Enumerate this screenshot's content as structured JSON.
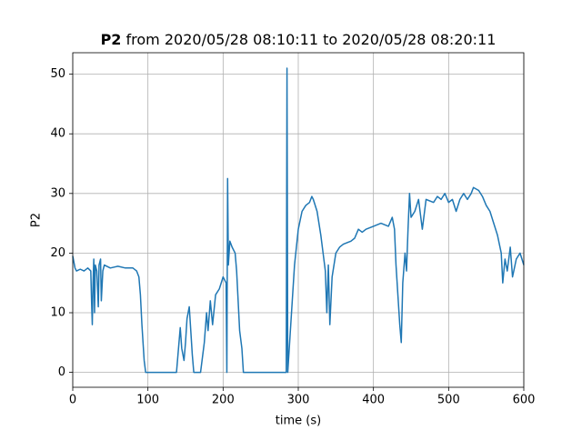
{
  "chart_data": {
    "type": "line",
    "title": [
      "P2",
      "from 2020/05/28 08:10:11 to 2020/05/28 08:20:11"
    ],
    "x_label": "time (s)",
    "y_label": "P2",
    "x": [
      0,
      3,
      5,
      10,
      15,
      20,
      24,
      25,
      26,
      27,
      28,
      29,
      30,
      32,
      34,
      35,
      37,
      38,
      40,
      42,
      50,
      60,
      70,
      80,
      85,
      88,
      90,
      92,
      95,
      97,
      100,
      138,
      140,
      143,
      145,
      148,
      150,
      152,
      155,
      157,
      159,
      161,
      163,
      170,
      175,
      178,
      180,
      183,
      186,
      190,
      195,
      200,
      204,
      205,
      206,
      207,
      209,
      212,
      216,
      218,
      220,
      222,
      225,
      227,
      230,
      284,
      285,
      286,
      287,
      289,
      292,
      295,
      300,
      305,
      310,
      315,
      318,
      320,
      325,
      330,
      333,
      336,
      338,
      340,
      342,
      345,
      350,
      355,
      360,
      370,
      375,
      380,
      385,
      390,
      400,
      410,
      420,
      425,
      428,
      430,
      433,
      435,
      437,
      439,
      442,
      444,
      446,
      448,
      450,
      455,
      460,
      465,
      470,
      480,
      485,
      490,
      495,
      500,
      505,
      510,
      515,
      520,
      525,
      530,
      533,
      540,
      545,
      550,
      555,
      560,
      565,
      570,
      572,
      575,
      578,
      582,
      585,
      590,
      595,
      600
    ],
    "series": [
      {
        "name": "P2",
        "color": "#1f77b4",
        "values": [
          19.5,
          17.5,
          17,
          17.3,
          17,
          17.5,
          17,
          12,
          8,
          15,
          19,
          10,
          18,
          17,
          11,
          18,
          19,
          12,
          17,
          18,
          17.5,
          17.8,
          17.5,
          17.5,
          17,
          16,
          13,
          8,
          2,
          0,
          0,
          0,
          3,
          7.5,
          4,
          2,
          5,
          9,
          11,
          7,
          3,
          0,
          0,
          0,
          5,
          10,
          7,
          12,
          8,
          13,
          14,
          16,
          15,
          0,
          32.5,
          18,
          22,
          21,
          20,
          17,
          12,
          7,
          4,
          0,
          0,
          0,
          51,
          0,
          2,
          6,
          12,
          18,
          24,
          27,
          28,
          28.5,
          29.5,
          29,
          27,
          23,
          20,
          17,
          10,
          18,
          8,
          16,
          20,
          21,
          21.5,
          22,
          22.5,
          24,
          23.5,
          24,
          24.5,
          25,
          24.5,
          26,
          24,
          18,
          12,
          8,
          5,
          15,
          20,
          17,
          24,
          30,
          26,
          27,
          29,
          24,
          29,
          28.5,
          29.5,
          29,
          30,
          28.5,
          29,
          27,
          29,
          30,
          29,
          30,
          31,
          30.5,
          29.5,
          28,
          27,
          25,
          23,
          20,
          15,
          19,
          17,
          21,
          16,
          19,
          20,
          18
        ]
      }
    ],
    "xlim": [
      0,
      600
    ],
    "ylim": [
      -2.5,
      53.6
    ],
    "xticks": [
      0,
      100,
      200,
      300,
      400,
      500,
      600
    ],
    "yticks": [
      0,
      10,
      20,
      30,
      40,
      50
    ],
    "grid": true
  }
}
